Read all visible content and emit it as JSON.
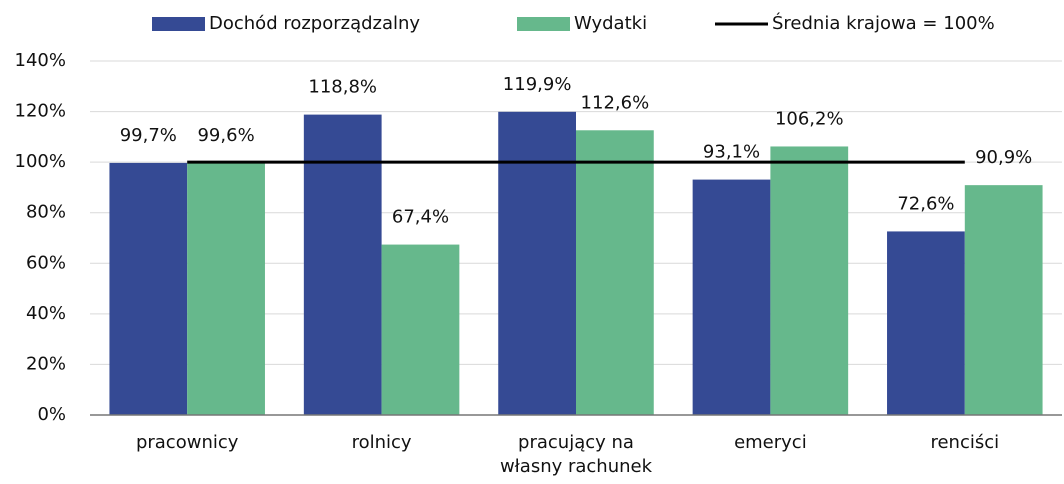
{
  "chart_data": {
    "type": "bar",
    "categories": [
      "pracownicy",
      "rolnicy",
      "pracujący na własny rachunek",
      "emeryci",
      "renciści"
    ],
    "series": [
      {
        "name": "Dochód rozporządzalny",
        "color": "#354a94",
        "values": [
          99.7,
          118.8,
          119.9,
          93.1,
          72.6
        ],
        "value_labels": [
          "99,7%",
          "118,8%",
          "119,9%",
          "93,1%",
          "72,6%"
        ]
      },
      {
        "name": "Wydatki",
        "color": "#66b88c",
        "values": [
          99.6,
          67.4,
          112.6,
          106.2,
          90.9
        ],
        "value_labels": [
          "99,6%",
          "67,4%",
          "112,6%",
          "106,2%",
          "90,9%"
        ]
      },
      {
        "name": "Średnia krajowa = 100%",
        "type": "line",
        "color": "#000000",
        "values": [
          100,
          100,
          100,
          100,
          100
        ]
      }
    ],
    "ylim": [
      0,
      140
    ],
    "yticks": [
      {
        "value": 0,
        "label": "0%"
      },
      {
        "value": 20,
        "label": "20%"
      },
      {
        "value": 40,
        "label": "40%"
      },
      {
        "value": 60,
        "label": "60%"
      },
      {
        "value": 80,
        "label": "80%"
      },
      {
        "value": 100,
        "label": "100%"
      },
      {
        "value": 120,
        "label": "120%"
      },
      {
        "value": 140,
        "label": "140%"
      }
    ],
    "grid": true,
    "legend": "top"
  }
}
